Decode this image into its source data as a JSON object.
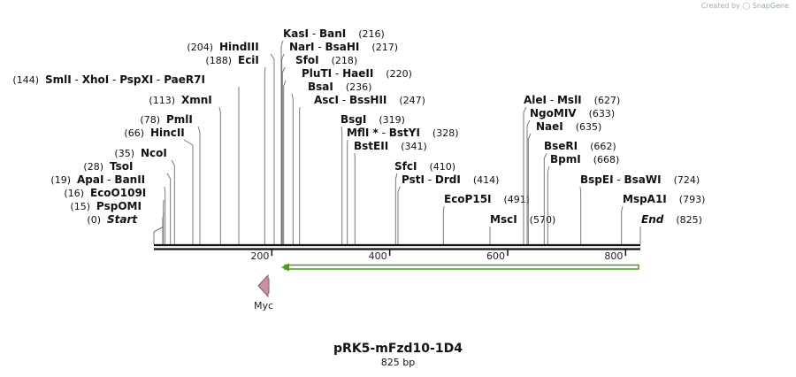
{
  "credit": {
    "created_by": "Created by",
    "brand": "SnapGene"
  },
  "title": "pRK5-mFzd10-1D4",
  "length_label": "825 bp",
  "sequence_length": 825,
  "axis_ticks": [
    200,
    400,
    600,
    800
  ],
  "sites": [
    {
      "labels": [
        "Start"
      ],
      "position": "(0)",
      "site": 0,
      "italic": true
    },
    {
      "labels": [
        "PspOMI"
      ],
      "position": "(15)",
      "site": 15
    },
    {
      "labels": [
        "EcoO109I"
      ],
      "position": "(16)",
      "site": 16
    },
    {
      "labels": [
        "ApaI",
        "BanII"
      ],
      "position": "(19)",
      "site": 19
    },
    {
      "labels": [
        "TsoI"
      ],
      "position": "(28)",
      "site": 28
    },
    {
      "labels": [
        "NcoI"
      ],
      "position": "(35)",
      "site": 35
    },
    {
      "labels": [
        "HincII"
      ],
      "position": "(66)",
      "site": 66
    },
    {
      "labels": [
        "PmlI"
      ],
      "position": "(78)",
      "site": 78
    },
    {
      "labels": [
        "XmnI"
      ],
      "position": "(113)",
      "site": 113
    },
    {
      "labels": [
        "SmlI",
        "XhoI",
        "PspXI",
        "PaeR7I"
      ],
      "position": "(144)",
      "site": 144
    },
    {
      "labels": [
        "EciI"
      ],
      "position": "(188)",
      "site": 188
    },
    {
      "labels": [
        "HindIII"
      ],
      "position": "(204)",
      "site": 204
    },
    {
      "labels": [
        "KasI",
        "BanI"
      ],
      "position": "(216)",
      "site": 216
    },
    {
      "labels": [
        "NarI",
        "BsaHI"
      ],
      "position": "(217)",
      "site": 217
    },
    {
      "labels": [
        "SfoI"
      ],
      "position": "(218)",
      "site": 218
    },
    {
      "labels": [
        "PluTI",
        "HaeII"
      ],
      "position": "(220)",
      "site": 220
    },
    {
      "labels": [
        "BsaI"
      ],
      "position": "(236)",
      "site": 236
    },
    {
      "labels": [
        "AscI",
        "BssHII"
      ],
      "position": "(247)",
      "site": 247
    },
    {
      "labels": [
        "BsgI"
      ],
      "position": "(319)",
      "site": 319
    },
    {
      "labels": [
        "MflI *",
        "BstYI"
      ],
      "position": "(328)",
      "site": 328
    },
    {
      "labels": [
        "BstEII"
      ],
      "position": "(341)",
      "site": 341
    },
    {
      "labels": [
        "SfcI"
      ],
      "position": "(410)",
      "site": 410
    },
    {
      "labels": [
        "PstI",
        "DrdI"
      ],
      "position": "(414)",
      "site": 414
    },
    {
      "labels": [
        "EcoP15I"
      ],
      "position": "(491)",
      "site": 491
    },
    {
      "labels": [
        "MscI"
      ],
      "position": "(570)",
      "site": 570
    },
    {
      "labels": [
        "AleI",
        "MslI"
      ],
      "position": "(627)",
      "site": 627
    },
    {
      "labels": [
        "NgoMIV"
      ],
      "position": "(633)",
      "site": 633
    },
    {
      "labels": [
        "NaeI"
      ],
      "position": "(635)",
      "site": 635
    },
    {
      "labels": [
        "BseRI"
      ],
      "position": "(662)",
      "site": 662
    },
    {
      "labels": [
        "BpmI"
      ],
      "position": "(668)",
      "site": 668
    },
    {
      "labels": [
        "BspEI",
        "BsaWI"
      ],
      "position": "(724)",
      "site": 724
    },
    {
      "labels": [
        "MspA1I"
      ],
      "position": "(793)",
      "site": 793
    },
    {
      "labels": [
        "End"
      ],
      "position": "(825)",
      "site": 825,
      "italic": true
    }
  ],
  "features": [
    {
      "name": "Myc",
      "start": 174,
      "end": 204,
      "direction": "reverse",
      "color": "#c98fa3"
    },
    {
      "name": "",
      "start": 210,
      "end": 825,
      "direction": "reverse",
      "color": "#4a9a1e"
    }
  ]
}
